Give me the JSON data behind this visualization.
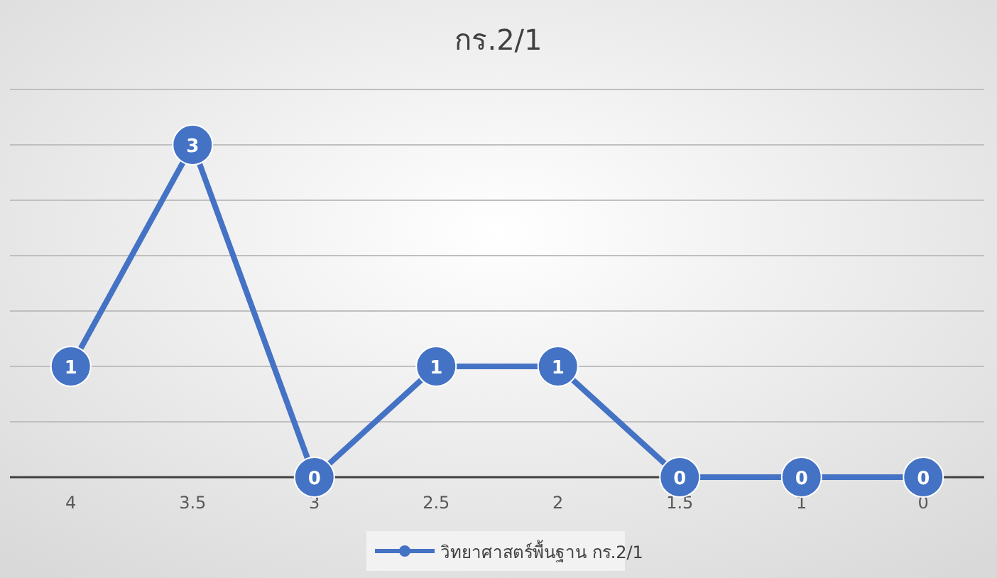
{
  "chart_data": {
    "type": "line",
    "title": "กร.2/1",
    "categories": [
      "4",
      "3.5",
      "3",
      "2.5",
      "2",
      "1.5",
      "1",
      "0"
    ],
    "series": [
      {
        "name": "วิทยาศาสตร์พื้นฐาน กร.2/1",
        "color": "#4472c4",
        "values": [
          1,
          3,
          0,
          1,
          1,
          0,
          0,
          0
        ]
      }
    ],
    "ylim": [
      0,
      3.5
    ],
    "yticks": [
      {
        "value": 0,
        "label": null
      },
      {
        "value": 0.5,
        "label": null
      },
      {
        "value": 1,
        "label": null
      },
      {
        "value": 1.5,
        "label": null
      },
      {
        "value": 2,
        "label": null
      },
      {
        "value": 2.5,
        "label": null
      },
      {
        "value": 3,
        "label": null
      },
      {
        "value": 3.5,
        "label": null
      }
    ],
    "grid": "y",
    "legend": "bottom",
    "marker": "circle",
    "line_style": "solid",
    "data_labels": true
  }
}
